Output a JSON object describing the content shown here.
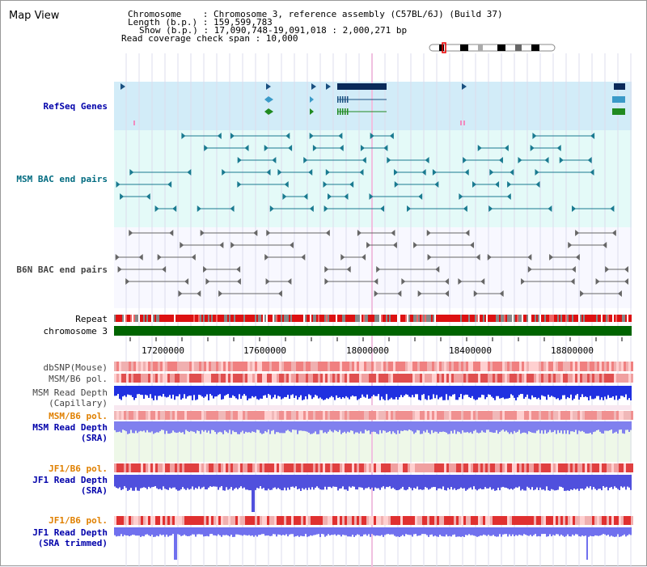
{
  "title": "Map View",
  "header": {
    "chromosome_line": "Chromosome    : Chromosome 3, reference assembly (C57BL/6J) (Build 37)",
    "length_line": "Length (b.p.) : 159,599,783",
    "show_line": "Show (b.p.) : 17,090,748-19,091,018 : 2,000,271 bp",
    "coverage_line": "Read coverage check span : 10,000"
  },
  "tracks": {
    "refseq": {
      "label": "RefSeq Genes",
      "color": "#0000aa"
    },
    "msm_bac": {
      "label": "MSM BAC end pairs",
      "color": "#006b80"
    },
    "b6n_bac": {
      "label": "B6N BAC end pairs",
      "color": "#444444"
    },
    "repeat": {
      "label": "Repeat"
    },
    "chromosome": {
      "label": "chromosome 3"
    },
    "dbsnp": {
      "label": "dbSNP(Mouse)"
    },
    "msm_b6_pol": {
      "label": "MSM/B6 pol."
    },
    "msm_depth_cap": {
      "label1": "MSM Read Depth",
      "label2": "(Capillary)"
    },
    "msm_b6_pol2": {
      "label": "MSM/B6 pol."
    },
    "msm_depth_sra": {
      "label1": "MSM Read Depth",
      "label2": "(SRA)"
    },
    "jf1_b6_pol": {
      "label": "JF1/B6 pol."
    },
    "jf1_depth_sra": {
      "label1": "JF1 Read Depth",
      "label2": "(SRA)"
    },
    "jf1_b6_pol2": {
      "label": "JF1/B6 pol."
    },
    "jf1_depth_trim": {
      "label1": "JF1 Read Depth",
      "label2": "(SRA trimmed)"
    }
  },
  "axis": {
    "ticks": [
      "17200000",
      "17600000",
      "18000000",
      "18400000",
      "18800000"
    ]
  },
  "colors": {
    "blue_label": "#0000aa",
    "orange_label": "#e08000",
    "gray_label": "#444444",
    "chromosome_green": "#006400"
  }
}
